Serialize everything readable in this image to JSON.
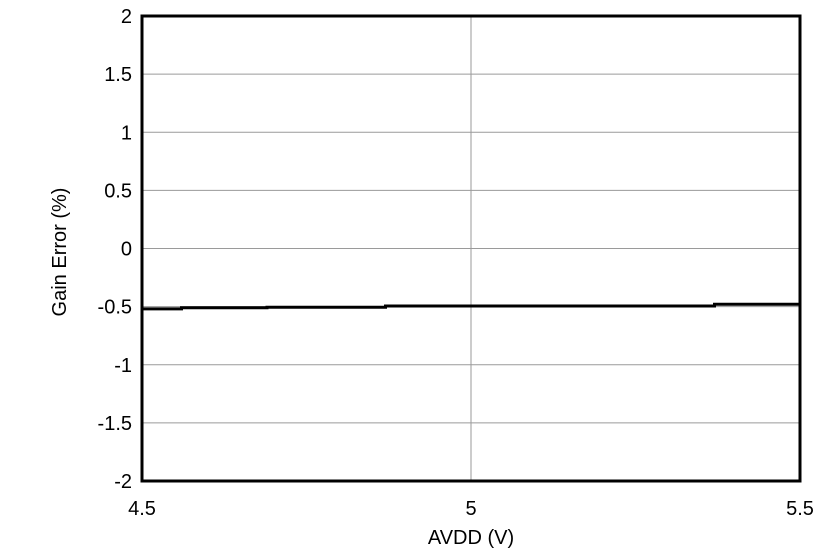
{
  "chart_data": {
    "type": "line",
    "title": "",
    "xlabel": "AVDD (V)",
    "ylabel": "Gain Error (%)",
    "xlim": [
      4.5,
      5.5
    ],
    "ylim": [
      -2,
      2
    ],
    "x_ticks": [
      4.5,
      5,
      5.5
    ],
    "x_tick_labels": [
      "4.5",
      "5",
      "5.5"
    ],
    "y_ticks": [
      2,
      1.5,
      1,
      0.5,
      0,
      -0.5,
      -1,
      -1.5,
      -2
    ],
    "y_tick_labels": [
      "2",
      "1.5",
      "1",
      "0.5",
      "0",
      "-0.5",
      "-1",
      "-1.5",
      "-2"
    ],
    "grid": true,
    "legend": "none",
    "series": [
      {
        "name": "gain-error-trace",
        "points": [
          [
            4.5,
            -0.52
          ],
          [
            4.56,
            -0.52
          ],
          [
            4.56,
            -0.51
          ],
          [
            4.69,
            -0.51
          ],
          [
            4.69,
            -0.505
          ],
          [
            4.87,
            -0.505
          ],
          [
            4.87,
            -0.495
          ],
          [
            5.37,
            -0.495
          ],
          [
            5.37,
            -0.48
          ],
          [
            5.5,
            -0.48
          ]
        ]
      }
    ],
    "colors": {
      "background": "#ffffff",
      "frame": "#000000",
      "grid": "#9a9a9a",
      "trace": "#000000",
      "text": "#000000"
    }
  }
}
